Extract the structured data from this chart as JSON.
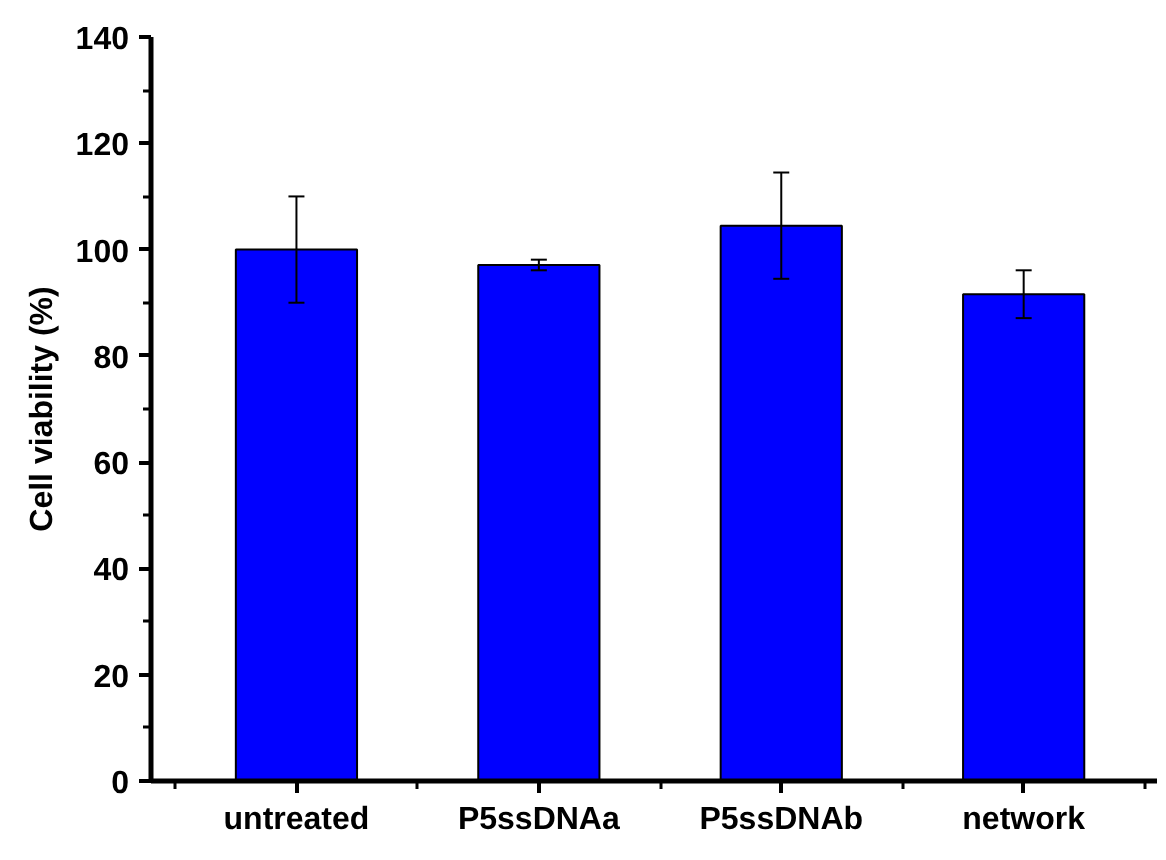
{
  "chart_data": {
    "type": "bar",
    "ylabel": "Cell viability (%)",
    "categories": [
      "untreated",
      "P5ssDNAa",
      "P5ssDNAb",
      "network"
    ],
    "values": [
      100,
      97.1,
      104.5,
      91.6
    ],
    "errors": [
      10,
      1,
      10,
      4.5
    ],
    "color": "#0000ff",
    "ylim": [
      0,
      140
    ],
    "yticks": [
      0,
      20,
      40,
      60,
      80,
      100,
      120,
      140
    ],
    "grid": false
  }
}
